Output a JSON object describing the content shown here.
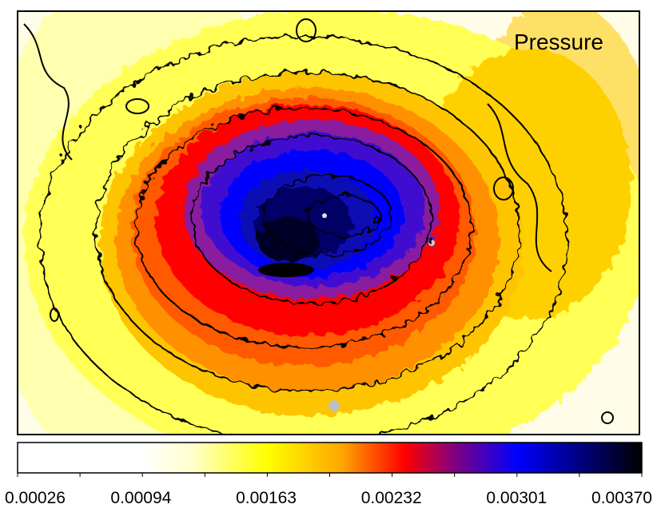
{
  "chart_data": {
    "type": "heatmap",
    "title": "Pressure",
    "xlabel": "",
    "ylabel": "",
    "colorbar": {
      "orientation": "horizontal",
      "placement": "bottom",
      "range": [
        0.00026,
        0.0037
      ],
      "tick_labels": [
        "0.00026",
        "0.00094",
        "0.00163",
        "0.00232",
        "0.00301",
        "0.00370"
      ],
      "colors": [
        "#ffffff",
        "#ffffcc",
        "#ffff00",
        "#ffa500",
        "#ff0000",
        "#800080",
        "#0000ff",
        "#000080",
        "#000000"
      ]
    },
    "overlay": "black contour lines",
    "grid": false
  }
}
